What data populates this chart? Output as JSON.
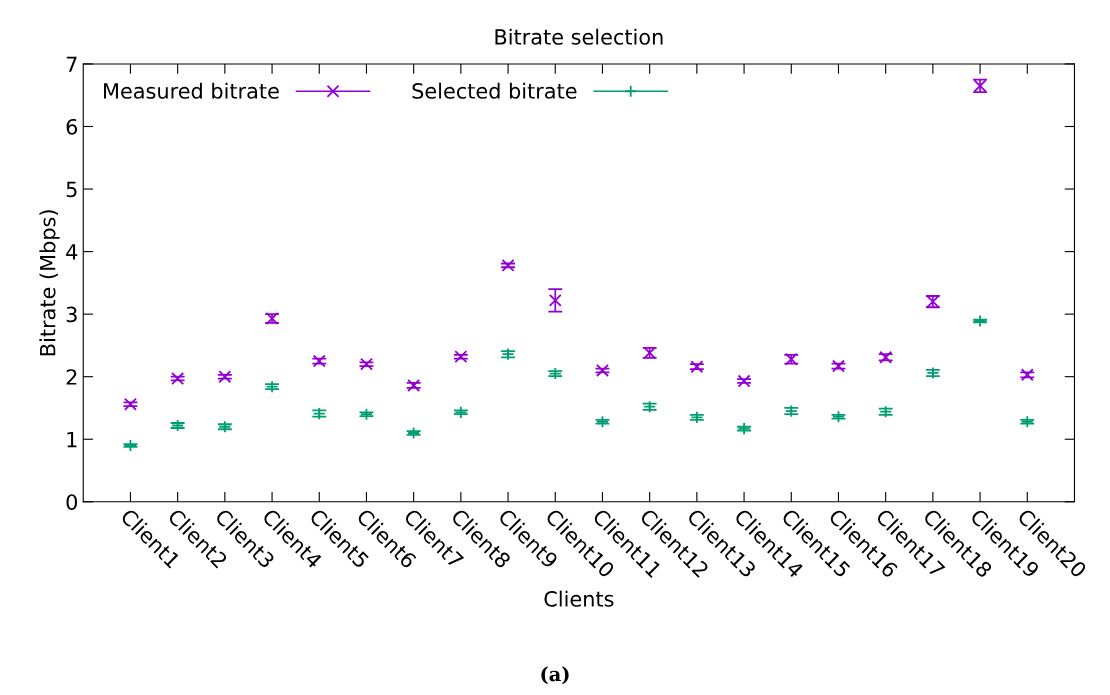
{
  "chart_data": {
    "type": "scatter",
    "title": "Bitrate selection",
    "xlabel": "Clients",
    "ylabel": "Bitrate (Mbps)",
    "categories": [
      "Client1",
      "Client2",
      "Client3",
      "Client4",
      "Client5",
      "Client6",
      "Client7",
      "Client8",
      "Client9",
      "Client10",
      "Client11",
      "Client12",
      "Client13",
      "Client14",
      "Client15",
      "Client16",
      "Client17",
      "Client18",
      "Client19",
      "Client20"
    ],
    "series": [
      {
        "name": "Measured bitrate",
        "color": "#9400d3",
        "marker": "cross",
        "values": [
          1.56,
          1.97,
          2.0,
          2.93,
          2.25,
          2.2,
          1.86,
          2.32,
          3.78,
          3.22,
          2.1,
          2.38,
          2.16,
          1.93,
          2.28,
          2.17,
          2.31,
          3.2,
          6.65,
          2.03
        ],
        "errors": [
          0.03,
          0.03,
          0.03,
          0.07,
          0.04,
          0.03,
          0.04,
          0.03,
          0.03,
          0.18,
          0.03,
          0.08,
          0.04,
          0.03,
          0.07,
          0.04,
          0.05,
          0.09,
          0.1,
          0.04
        ]
      },
      {
        "name": "Selected bitrate",
        "color": "#009e73",
        "marker": "plus",
        "values": [
          0.9,
          1.22,
          1.2,
          1.84,
          1.41,
          1.4,
          1.1,
          1.43,
          2.36,
          2.05,
          1.28,
          1.52,
          1.35,
          1.17,
          1.45,
          1.36,
          1.44,
          2.06,
          2.89,
          1.28
        ],
        "errors": [
          0.02,
          0.04,
          0.04,
          0.04,
          0.05,
          0.03,
          0.03,
          0.03,
          0.05,
          0.04,
          0.03,
          0.05,
          0.04,
          0.03,
          0.05,
          0.03,
          0.05,
          0.05,
          0.02,
          0.03
        ]
      }
    ],
    "ylim": [
      0,
      7
    ],
    "yticks": [
      0,
      1,
      2,
      3,
      4,
      5,
      6,
      7
    ],
    "grid": false,
    "legend": "top left",
    "annotations": [
      "(a)"
    ]
  }
}
